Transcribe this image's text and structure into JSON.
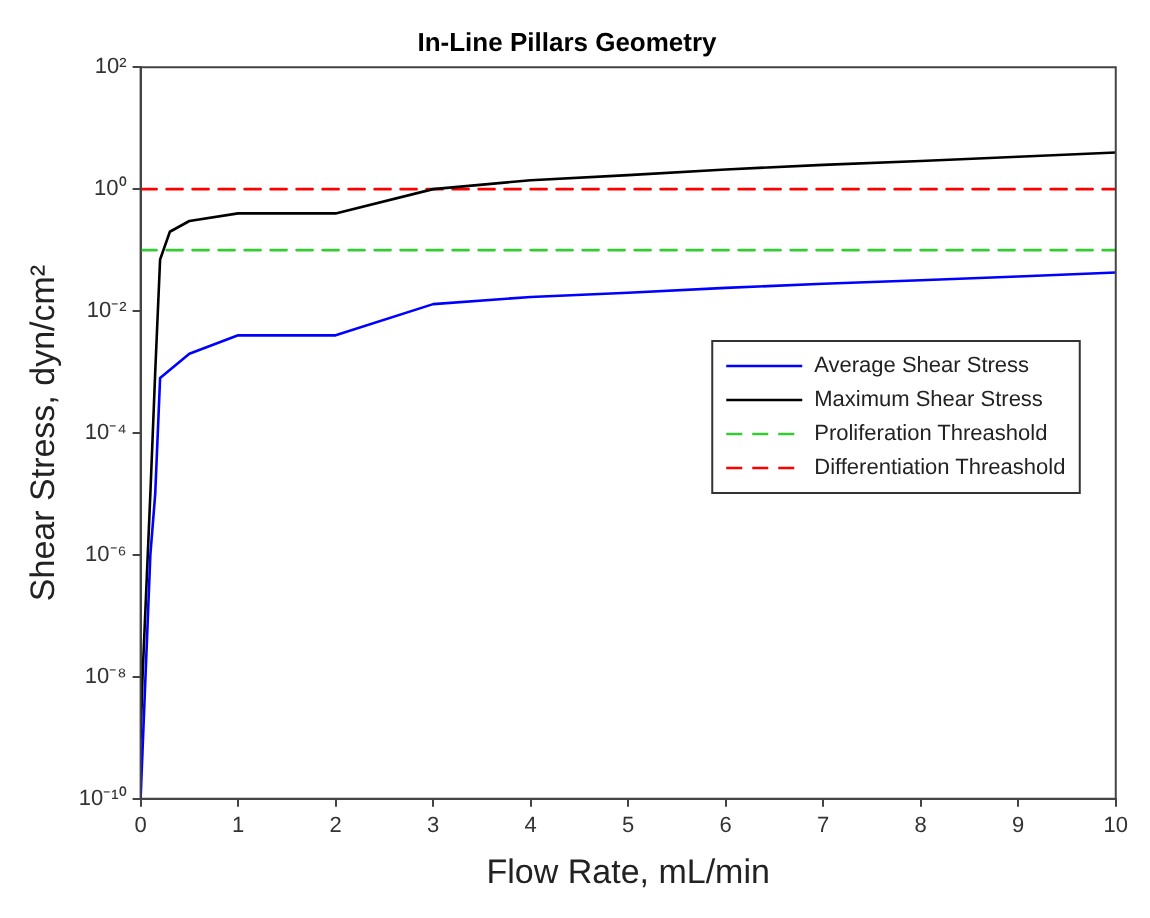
{
  "chart_data": {
    "type": "line",
    "title": "In-Line Pillars Geometry",
    "xlabel": "Flow Rate, mL/min",
    "ylabel": "Shear Stress, dyn/cm²",
    "log": "y",
    "grid": false,
    "legend": "right",
    "marker": "none",
    "xlim": [
      0,
      10
    ],
    "xticks": [
      0,
      1,
      2,
      3,
      4,
      5,
      6,
      7,
      8,
      9,
      10
    ],
    "ylim": [
      1e-10,
      100
    ],
    "yticks": [
      {
        "value": 100,
        "label": "10²"
      },
      {
        "value": 1,
        "label": "10⁰"
      },
      {
        "value": 0.01,
        "label": "10⁻²"
      },
      {
        "value": 0.0001,
        "label": "10⁻⁴"
      },
      {
        "value": 1e-06,
        "label": "10⁻⁶"
      },
      {
        "value": 1e-08,
        "label": "10⁻⁸"
      },
      {
        "value": 1e-10,
        "label": "10⁻¹⁰"
      }
    ],
    "series": [
      {
        "name": "Average Shear Stress",
        "color": "#0000ff",
        "line_style": "solid",
        "x": [
          0,
          0.05,
          0.1,
          0.15,
          0.2,
          0.5,
          1,
          2,
          3,
          4,
          5,
          6,
          7,
          8,
          9,
          10
        ],
        "values": [
          1e-10,
          1e-08,
          1e-06,
          1e-05,
          0.0008,
          0.002,
          0.004,
          0.004,
          0.013,
          0.017,
          0.02,
          0.024,
          0.028,
          0.032,
          0.037,
          0.043
        ]
      },
      {
        "name": "Maximum Shear Stress",
        "color": "#000000",
        "line_style": "solid",
        "x": [
          0,
          0.02,
          0.1,
          0.15,
          0.2,
          0.3,
          0.5,
          1,
          2,
          3,
          4,
          5,
          6,
          7,
          8,
          9,
          10
        ],
        "values": [
          1e-09,
          1e-08,
          1e-05,
          0.001,
          0.07,
          0.2,
          0.3,
          0.4,
          0.4,
          1,
          1.4,
          1.7,
          2.1,
          2.5,
          2.9,
          3.4,
          4
        ]
      },
      {
        "name": "Proliferation Threashold",
        "color": "#33cc33",
        "line_style": "dashed",
        "x": [
          0,
          10
        ],
        "values": [
          0.1,
          0.1
        ]
      },
      {
        "name": "Differentiation Threashold",
        "color": "#ff0000",
        "line_style": "dashed",
        "x": [
          0,
          10
        ],
        "values": [
          1,
          1
        ]
      }
    ]
  }
}
